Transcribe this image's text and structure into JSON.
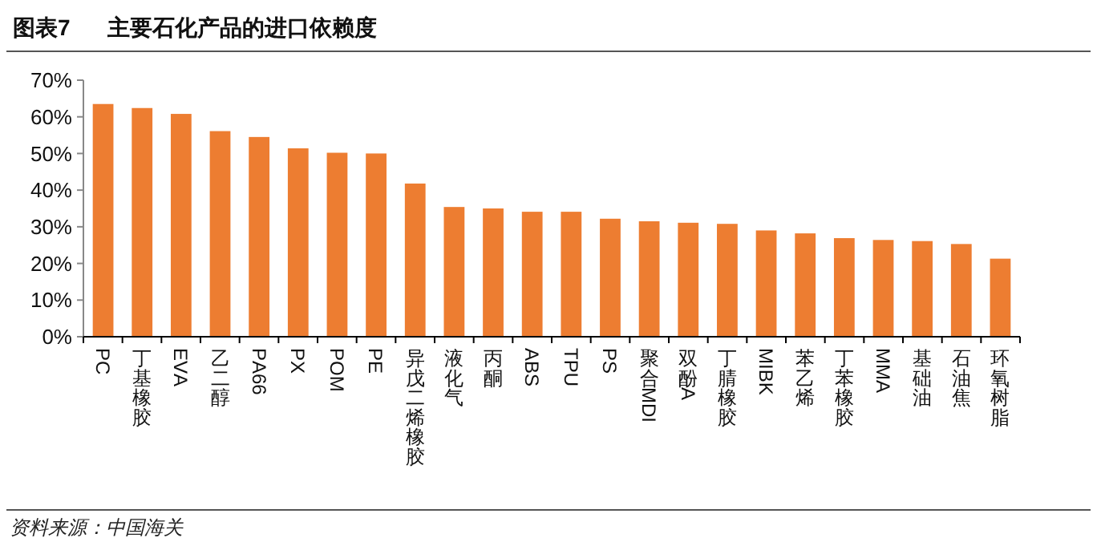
{
  "chart_data": {
    "type": "bar",
    "title": "图表7      主要石化产品的进口依赖度",
    "categories": [
      "PC",
      "丁基橡胶",
      "EVA",
      "乙二醇",
      "PA66",
      "PX",
      "POM",
      "PE",
      "异戊二烯橡胶",
      "液化气",
      "丙酮",
      "ABS",
      "TPU",
      "PS",
      "聚合MDI",
      "双酚A",
      "丁腈橡胶",
      "MIBK",
      "苯乙烯",
      "丁苯橡胶",
      "MMA",
      "基础油",
      "石油焦",
      "环氧树脂"
    ],
    "values": [
      63.5,
      62.4,
      60.8,
      56.1,
      54.5,
      51.4,
      50.2,
      50.0,
      41.8,
      35.4,
      35.0,
      34.1,
      34.1,
      32.2,
      31.5,
      31.1,
      30.8,
      29.0,
      28.2,
      26.9,
      26.4,
      26.1,
      25.3,
      21.3
    ],
    "color": "#ed7d31",
    "ylim": [
      0,
      70
    ],
    "yticks": [
      {
        "value": 0,
        "label": "0%"
      },
      {
        "value": 10,
        "label": "10%"
      },
      {
        "value": 20,
        "label": "20%"
      },
      {
        "value": 30,
        "label": "30%"
      },
      {
        "value": 40,
        "label": "40%"
      },
      {
        "value": 50,
        "label": "50%"
      },
      {
        "value": 60,
        "label": "60%"
      },
      {
        "value": 70,
        "label": "70%"
      }
    ],
    "grid": false,
    "annotations": [
      "资料来源：中国海关"
    ]
  }
}
